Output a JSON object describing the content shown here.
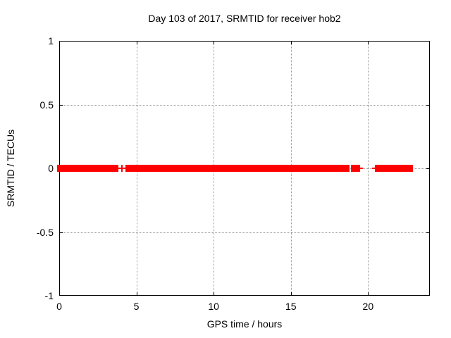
{
  "chart_data": {
    "type": "scatter",
    "title": "Day 103 of 2017, SRMTID for receiver hob2",
    "xlabel": "GPS time / hours",
    "ylabel": "SRMTID / TECUs",
    "xlim": [
      0,
      24
    ],
    "ylim": [
      -1,
      1
    ],
    "xtick_values": [
      0,
      5,
      10,
      15,
      20
    ],
    "xtick_labels": [
      "0",
      "5",
      "10",
      "15",
      "20"
    ],
    "ytick_values": [
      1,
      0.5,
      0,
      -0.5,
      -1
    ],
    "ytick_labels": [
      "1",
      "0.5",
      "0",
      "-0.5",
      "-1"
    ],
    "grid": true,
    "legend": "none",
    "marker": "plus-cross",
    "y_value": 0,
    "segments_hours": [
      {
        "start": 0.0,
        "end": 3.7
      },
      {
        "start": 4.43,
        "end": 18.66
      },
      {
        "start": 19.03,
        "end": 19.31
      },
      {
        "start": 20.67,
        "end": 22.77
      }
    ],
    "isolated_points_hours": [
      4.06,
      19.45,
      20.49
    ]
  },
  "colors": {
    "series": "#ff0000",
    "grid": "#9a9a9a",
    "axis": "#000000",
    "background": "#ffffff",
    "text": "#000000"
  }
}
